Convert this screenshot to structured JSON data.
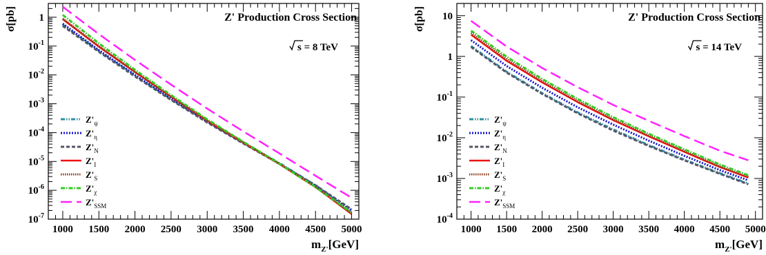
{
  "legend_entries": [
    {
      "base": "Z'",
      "sub": "ψ"
    },
    {
      "base": "Z'",
      "sub": "η"
    },
    {
      "base": "Z'",
      "sub": "N"
    },
    {
      "base": "Z'",
      "sub": "I"
    },
    {
      "base": "Z'",
      "sub": "S"
    },
    {
      "base": "Z'",
      "sub": "χ"
    },
    {
      "base": "Z'",
      "sub": "SSM"
    }
  ],
  "series_styles": [
    {
      "color": "#2f8fa0",
      "dash": "6 2 1.5 2 1.5 2",
      "width": 3
    },
    {
      "color": "#1414c8",
      "dash": "2 2",
      "width": 3
    },
    {
      "color": "#555566",
      "dash": "5 3",
      "width": 3
    },
    {
      "color": "#ee1111",
      "dash": "",
      "width": 2.5
    },
    {
      "color": "#8b3a1a",
      "dash": "1.5 1.5",
      "width": 3
    },
    {
      "color": "#33cc22",
      "dash": "6 2 1.5 2",
      "width": 3
    },
    {
      "color": "#ff22ff",
      "dash": "16 7",
      "width": 2.5
    }
  ],
  "chart_data": [
    {
      "type": "line",
      "title": "Z' Production Cross Section",
      "energy_label": "s = 8 TeV",
      "xlabel": {
        "base": "m",
        "sub": "Z'",
        "suffix": "[GeV]"
      },
      "ylabel": "σ[pb]",
      "log_y": true,
      "xlim": [
        800,
        5100
      ],
      "ylim": [
        1e-07,
        3
      ],
      "xticks": [
        1000,
        1500,
        2000,
        2500,
        3000,
        3500,
        4000,
        4500,
        5000
      ],
      "yticks": [
        {
          "m": "1",
          "e": ""
        },
        {
          "m": "10",
          "e": "-1"
        },
        {
          "m": "10",
          "e": "-2"
        },
        {
          "m": "10",
          "e": "-3"
        },
        {
          "m": "10",
          "e": "-4"
        },
        {
          "m": "10",
          "e": "-5"
        },
        {
          "m": "10",
          "e": "-6"
        },
        {
          "m": "10",
          "e": "-7"
        }
      ],
      "ytick_values": [
        1,
        0.1,
        0.01,
        0.001,
        0.0001,
        1e-05,
        1e-06,
        1e-07
      ],
      "legend": "bottom-left",
      "grid": false,
      "x": [
        1000,
        1500,
        2000,
        2500,
        3000,
        3500,
        4000,
        4500,
        5000
      ],
      "series": [
        {
          "legend_index": 0,
          "values": [
            0.55,
            0.068,
            0.0095,
            0.00145,
            0.00024,
            4.5e-05,
            8.8e-06,
            1.5e-06,
            2.1e-07
          ]
        },
        {
          "legend_index": 1,
          "values": [
            0.6,
            0.072,
            0.01,
            0.0015,
            0.00024,
            4.4e-05,
            8.4e-06,
            1.4e-06,
            1.9e-07
          ]
        },
        {
          "legend_index": 2,
          "values": [
            0.5,
            0.063,
            0.0088,
            0.00136,
            0.000225,
            4.2e-05,
            8.3e-06,
            1.5e-06,
            2.2e-07
          ]
        },
        {
          "legend_index": 3,
          "values": [
            0.85,
            0.095,
            0.0125,
            0.00175,
            0.00026,
            4.5e-05,
            8.1e-06,
            1.3e-06,
            1.5e-07
          ]
        },
        {
          "legend_index": 4,
          "values": [
            0.9,
            0.1,
            0.0128,
            0.0018,
            0.00027,
            4.6e-05,
            8.2e-06,
            1.3e-06,
            1.6e-07
          ]
        },
        {
          "legend_index": 5,
          "values": [
            1.2,
            0.125,
            0.015,
            0.002,
            0.00029,
            4.8e-05,
            8.4e-06,
            1.3e-06,
            1.7e-07
          ]
        },
        {
          "legend_index": 6,
          "values": [
            2.3,
            0.26,
            0.033,
            0.0046,
            0.00068,
            0.00011,
            1.9e-05,
            3.2e-06,
            5.5e-07
          ]
        }
      ]
    },
    {
      "type": "line",
      "title": "Z' Production Cross Section",
      "energy_label": "s = 14 TeV",
      "xlabel": {
        "base": "m",
        "sub": "Z'",
        "suffix": "[GeV]"
      },
      "ylabel": "σ[pb]",
      "log_y": true,
      "xlim": [
        800,
        5100
      ],
      "ylim": [
        0.0001,
        20
      ],
      "xticks": [
        1000,
        1500,
        2000,
        2500,
        3000,
        3500,
        4000,
        4500,
        5000
      ],
      "yticks": [
        {
          "m": "10",
          "e": ""
        },
        {
          "m": "1",
          "e": ""
        },
        {
          "m": "10",
          "e": "-1"
        },
        {
          "m": "10",
          "e": "-2"
        },
        {
          "m": "10",
          "e": "-3"
        },
        {
          "m": "10",
          "e": "-4"
        }
      ],
      "ytick_values": [
        10,
        1,
        0.1,
        0.01,
        0.001,
        0.0001
      ],
      "legend": "bottom-left",
      "grid": false,
      "x": [
        1000,
        1500,
        2000,
        2500,
        3000,
        3500,
        4000,
        4500,
        4900
      ],
      "series": [
        {
          "legend_index": 0,
          "values": [
            1.8,
            0.42,
            0.125,
            0.042,
            0.016,
            0.0066,
            0.0029,
            0.00135,
            0.00075
          ]
        },
        {
          "legend_index": 1,
          "values": [
            2.5,
            0.58,
            0.17,
            0.056,
            0.021,
            0.0085,
            0.0036,
            0.0016,
            0.0009
          ]
        },
        {
          "legend_index": 2,
          "values": [
            1.7,
            0.4,
            0.12,
            0.04,
            0.015,
            0.0063,
            0.0028,
            0.0013,
            0.00072
          ]
        },
        {
          "legend_index": 3,
          "values": [
            3.4,
            0.78,
            0.23,
            0.075,
            0.027,
            0.0108,
            0.0045,
            0.0019,
            0.00105
          ]
        },
        {
          "legend_index": 4,
          "values": [
            3.8,
            0.86,
            0.25,
            0.081,
            0.029,
            0.0115,
            0.0048,
            0.002,
            0.0011
          ]
        },
        {
          "legend_index": 5,
          "values": [
            4.3,
            0.98,
            0.28,
            0.09,
            0.032,
            0.0126,
            0.0052,
            0.0022,
            0.0012
          ]
        },
        {
          "legend_index": 6,
          "values": [
            7.5,
            1.75,
            0.52,
            0.175,
            0.064,
            0.026,
            0.011,
            0.0048,
            0.0028
          ]
        }
      ]
    }
  ]
}
